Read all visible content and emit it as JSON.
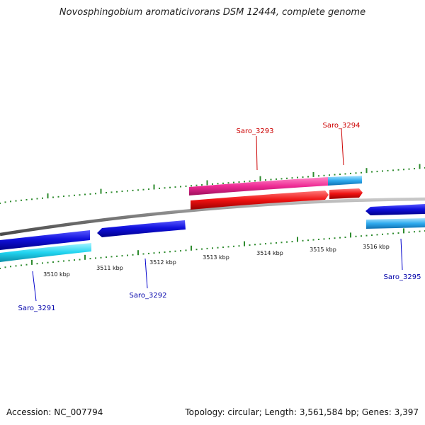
{
  "title": "Novosphingobium aromaticivorans DSM 12444, complete genome",
  "footer": {
    "accession": "Accession: NC_007794",
    "summary": "Topology: circular; Length: 3,561,584 bp; Genes: 3,397"
  },
  "scale": {
    "unit": "kbp",
    "labels": [
      "3510 kbp",
      "3511 kbp",
      "3512 kbp",
      "3513 kbp",
      "3514 kbp",
      "3515 kbp",
      "3516 kbp"
    ]
  },
  "genes": [
    {
      "id": "Saro_3291",
      "strand": "reverse",
      "label_color": "#0000aa"
    },
    {
      "id": "Saro_3292",
      "strand": "reverse",
      "label_color": "#0000aa"
    },
    {
      "id": "Saro_3293",
      "strand": "forward",
      "label_color": "#cc0000"
    },
    {
      "id": "Saro_3294",
      "strand": "forward",
      "label_color": "#cc0000"
    },
    {
      "id": "Saro_3295",
      "strand": "reverse",
      "label_color": "#0000aa"
    }
  ],
  "colors": {
    "backbone": "#8a8a8a",
    "ticks": "#2e8b2e",
    "forward_cds": "#ee1111",
    "forward_feature": "#ee2288",
    "reverse_cds": "#1111dd",
    "reverse_feature": "#22ccee"
  }
}
